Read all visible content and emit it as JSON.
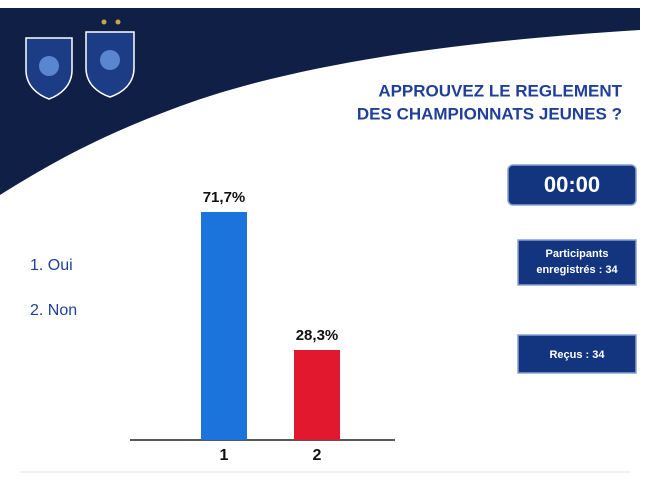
{
  "slide": {
    "title": [
      "APPROUVEZ LE REGLEMENT",
      "DES CHAMPIONNATS JEUNES ?"
    ],
    "timer": "00:00",
    "participants": [
      "Participants",
      "enregistrés : 34"
    ],
    "received": "Reçus : 34",
    "options": [
      "1.  Oui",
      "2.  Non"
    ]
  },
  "chart_data": {
    "type": "bar",
    "categories": [
      "1",
      "2"
    ],
    "values": [
      71.7,
      28.3
    ],
    "value_labels": [
      "71,7%",
      "28,3%"
    ],
    "colors": [
      "#1a74dc",
      "#e2182e"
    ]
  }
}
